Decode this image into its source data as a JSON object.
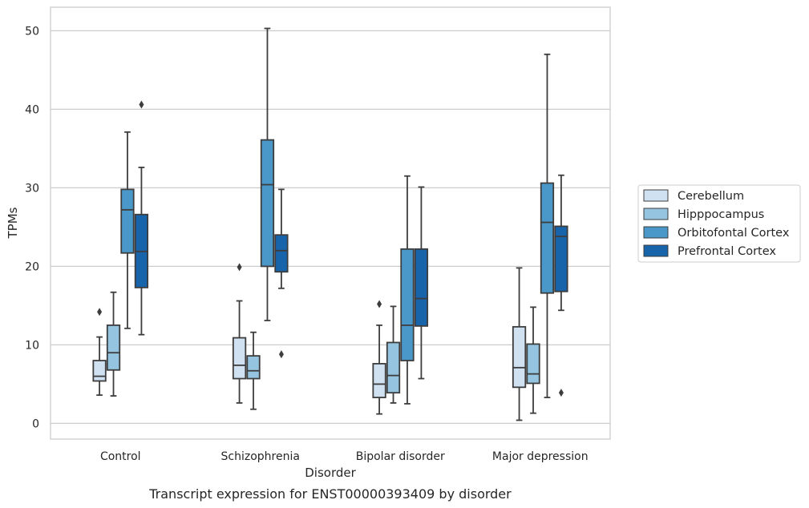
{
  "chart_data": {
    "type": "box",
    "caption": "Transcript expression for ENST00000393409 by disorder",
    "xlabel": "Disorder",
    "ylabel": "TPMs",
    "ylim": [
      -2,
      53
    ],
    "yticks": [
      0,
      10,
      20,
      30,
      40,
      50
    ],
    "grid": "horizontal",
    "legend_position": "right",
    "categories": [
      "Control",
      "Schizophrenia",
      "Bipolar disorder",
      "Major depression"
    ],
    "series": [
      {
        "name": "Cerebellum",
        "color": "#d0e1f2",
        "boxes": [
          {
            "whisker_low": 3.6,
            "q1": 5.4,
            "median": 6.0,
            "q3": 8.0,
            "whisker_high": 11.0,
            "outliers": [
              14.2
            ]
          },
          {
            "whisker_low": 2.6,
            "q1": 5.7,
            "median": 7.4,
            "q3": 10.9,
            "whisker_high": 15.6,
            "outliers": [
              19.9
            ]
          },
          {
            "whisker_low": 1.2,
            "q1": 3.3,
            "median": 5.0,
            "q3": 7.6,
            "whisker_high": 12.5,
            "outliers": [
              15.2
            ]
          },
          {
            "whisker_low": 0.4,
            "q1": 4.6,
            "median": 7.1,
            "q3": 12.3,
            "whisker_high": 19.8,
            "outliers": []
          }
        ]
      },
      {
        "name": "Hipppocampus",
        "color": "#94c4df",
        "boxes": [
          {
            "whisker_low": 3.5,
            "q1": 6.8,
            "median": 9.0,
            "q3": 12.5,
            "whisker_high": 16.7,
            "outliers": []
          },
          {
            "whisker_low": 1.8,
            "q1": 5.7,
            "median": 6.7,
            "q3": 8.6,
            "whisker_high": 11.6,
            "outliers": []
          },
          {
            "whisker_low": 2.6,
            "q1": 3.9,
            "median": 6.1,
            "q3": 10.3,
            "whisker_high": 14.9,
            "outliers": []
          },
          {
            "whisker_low": 1.3,
            "q1": 5.1,
            "median": 6.3,
            "q3": 10.1,
            "whisker_high": 14.8,
            "outliers": []
          }
        ]
      },
      {
        "name": "Orbitofontal Cortex",
        "color": "#4a98c9",
        "boxes": [
          {
            "whisker_low": 12.1,
            "q1": 21.7,
            "median": 27.2,
            "q3": 29.8,
            "whisker_high": 37.1,
            "outliers": []
          },
          {
            "whisker_low": 13.1,
            "q1": 20.0,
            "median": 30.4,
            "q3": 36.1,
            "whisker_high": 50.3,
            "outliers": []
          },
          {
            "whisker_low": 2.5,
            "q1": 8.0,
            "median": 12.5,
            "q3": 22.2,
            "whisker_high": 31.5,
            "outliers": []
          },
          {
            "whisker_low": 3.3,
            "q1": 16.6,
            "median": 25.6,
            "q3": 30.6,
            "whisker_high": 47.0,
            "outliers": []
          }
        ]
      },
      {
        "name": "Prefrontal Cortex",
        "color": "#1764ab",
        "boxes": [
          {
            "whisker_low": 11.3,
            "q1": 17.3,
            "median": 21.9,
            "q3": 26.6,
            "whisker_high": 32.6,
            "outliers": [
              40.6
            ]
          },
          {
            "whisker_low": 17.2,
            "q1": 19.3,
            "median": 22.0,
            "q3": 24.0,
            "whisker_high": 29.8,
            "outliers": [
              8.8
            ]
          },
          {
            "whisker_low": 5.7,
            "q1": 12.4,
            "median": 15.9,
            "q3": 22.2,
            "whisker_high": 30.1,
            "outliers": []
          },
          {
            "whisker_low": 14.4,
            "q1": 16.8,
            "median": 23.8,
            "q3": 25.1,
            "whisker_high": 31.6,
            "outliers": [
              3.9
            ]
          }
        ]
      }
    ]
  }
}
